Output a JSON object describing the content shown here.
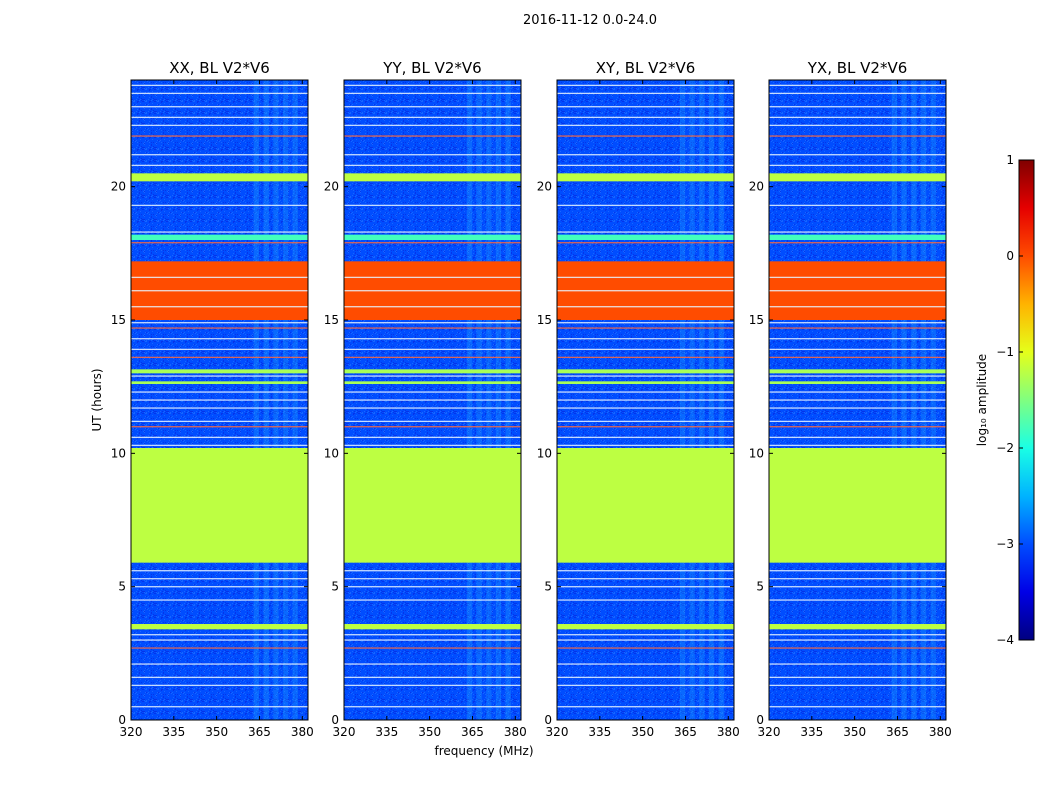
{
  "chart_data": {
    "type": "heatmap",
    "title": "2016-11-12 0.0-24.0",
    "xlabel": "frequency (MHz)",
    "ylabel": "UT (hours)",
    "xlim": [
      320,
      382
    ],
    "ylim": [
      0,
      24
    ],
    "x_ticks": [
      320,
      335,
      350,
      365,
      380
    ],
    "y_ticks": [
      0,
      5,
      10,
      15,
      20
    ],
    "panels": [
      {
        "title": "XX, BL V2*V6",
        "pol": "XX"
      },
      {
        "title": "YY, BL V2*V6",
        "pol": "YY"
      },
      {
        "title": "XY, BL V2*V6",
        "pol": "XY"
      },
      {
        "title": "YX, BL V2*V6",
        "pol": "YX"
      }
    ],
    "background_log10_amplitude": -3,
    "bands": [
      {
        "t_start": 5.9,
        "t_end": 10.2,
        "log10_amplitude": -1.2,
        "label": "flagged block"
      },
      {
        "t_start": 15.0,
        "t_end": 17.2,
        "log10_amplitude": 0.0,
        "label": "high amplitude block"
      },
      {
        "t_start": 20.2,
        "t_end": 20.5,
        "log10_amplitude": -1.2
      },
      {
        "t_start": 18.0,
        "t_end": 18.2,
        "log10_amplitude": -1.8
      },
      {
        "t_start": 13.0,
        "t_end": 13.15,
        "log10_amplitude": -1.3
      },
      {
        "t_start": 12.6,
        "t_end": 12.7,
        "log10_amplitude": -1.3
      },
      {
        "t_start": 3.4,
        "t_end": 3.6,
        "log10_amplitude": -1.2
      }
    ],
    "lines": [
      {
        "t": 0.5,
        "kind": "flag"
      },
      {
        "t": 1.3,
        "kind": "flag"
      },
      {
        "t": 1.6,
        "kind": "flag"
      },
      {
        "t": 2.1,
        "kind": "flag"
      },
      {
        "t": 2.7,
        "kind": "rfi"
      },
      {
        "t": 3.0,
        "kind": "flag"
      },
      {
        "t": 3.2,
        "kind": "flag"
      },
      {
        "t": 4.5,
        "kind": "flag"
      },
      {
        "t": 5.0,
        "kind": "flag"
      },
      {
        "t": 5.3,
        "kind": "flag"
      },
      {
        "t": 5.6,
        "kind": "flag"
      },
      {
        "t": 10.3,
        "kind": "flag"
      },
      {
        "t": 10.6,
        "kind": "flag"
      },
      {
        "t": 11.0,
        "kind": "rfi"
      },
      {
        "t": 11.2,
        "kind": "flag"
      },
      {
        "t": 11.7,
        "kind": "flag"
      },
      {
        "t": 12.0,
        "kind": "flag"
      },
      {
        "t": 12.3,
        "kind": "flag"
      },
      {
        "t": 12.9,
        "kind": "flag"
      },
      {
        "t": 13.6,
        "kind": "rfi"
      },
      {
        "t": 13.9,
        "kind": "flag"
      },
      {
        "t": 14.3,
        "kind": "flag"
      },
      {
        "t": 14.7,
        "kind": "rfi"
      },
      {
        "t": 14.9,
        "kind": "flag"
      },
      {
        "t": 15.5,
        "kind": "flag"
      },
      {
        "t": 16.1,
        "kind": "flag"
      },
      {
        "t": 16.6,
        "kind": "flag"
      },
      {
        "t": 17.9,
        "kind": "rfi"
      },
      {
        "t": 18.3,
        "kind": "flag"
      },
      {
        "t": 19.3,
        "kind": "flag"
      },
      {
        "t": 20.8,
        "kind": "flag"
      },
      {
        "t": 21.2,
        "kind": "flag"
      },
      {
        "t": 21.9,
        "kind": "rfi"
      },
      {
        "t": 22.3,
        "kind": "flag"
      },
      {
        "t": 22.6,
        "kind": "flag"
      },
      {
        "t": 23.0,
        "kind": "flag"
      },
      {
        "t": 23.5,
        "kind": "flag"
      },
      {
        "t": 23.8,
        "kind": "flag"
      }
    ],
    "rfi_frequency_range_mhz": [
      363,
      380
    ],
    "colorbar": {
      "label": "log₁₀ amplitude",
      "range": [
        -4,
        1
      ],
      "ticks": [
        1,
        0,
        -1,
        -2,
        -3,
        -4
      ],
      "tick_labels": [
        "1",
        "0",
        "−1",
        "−2",
        "−3",
        "−4"
      ]
    }
  }
}
